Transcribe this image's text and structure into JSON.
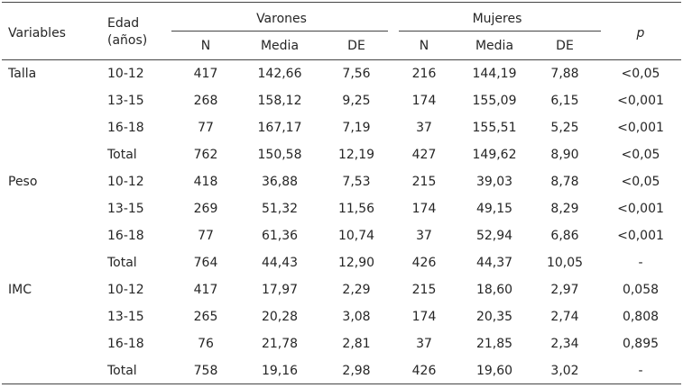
{
  "headers": {
    "variables": "Variables",
    "edad_line1": "Edad",
    "edad_line2": "(años)",
    "group_male": "Varones",
    "group_female": "Mujeres",
    "n": "N",
    "media": "Media",
    "de": "DE",
    "p": "p"
  },
  "rows": [
    {
      "variable": "Talla",
      "edad": "10-12",
      "vn": "417",
      "vm": "142,66",
      "vde": "7,56",
      "mn": "216",
      "mm": "144,19",
      "mde": "7,88",
      "p": "<0,05"
    },
    {
      "variable": "",
      "edad": "13-15",
      "vn": "268",
      "vm": "158,12",
      "vde": "9,25",
      "mn": "174",
      "mm": "155,09",
      "mde": "6,15",
      "p": "<0,001"
    },
    {
      "variable": "",
      "edad": "16-18",
      "vn": "77",
      "vm": "167,17",
      "vde": "7,19",
      "mn": "37",
      "mm": "155,51",
      "mde": "5,25",
      "p": "<0,001"
    },
    {
      "variable": "",
      "edad": "Total",
      "vn": "762",
      "vm": "150,58",
      "vde": "12,19",
      "mn": "427",
      "mm": "149,62",
      "mde": "8,90",
      "p": "<0,05"
    },
    {
      "variable": "Peso",
      "edad": "10-12",
      "vn": "418",
      "vm": "36,88",
      "vde": "7,53",
      "mn": "215",
      "mm": "39,03",
      "mde": "8,78",
      "p": "<0,05"
    },
    {
      "variable": "",
      "edad": "13-15",
      "vn": "269",
      "vm": "51,32",
      "vde": "11,56",
      "mn": "174",
      "mm": "49,15",
      "mde": "8,29",
      "p": "<0,001"
    },
    {
      "variable": "",
      "edad": "16-18",
      "vn": "77",
      "vm": "61,36",
      "vde": "10,74",
      "mn": "37",
      "mm": "52,94",
      "mde": "6,86",
      "p": "<0,001"
    },
    {
      "variable": "",
      "edad": "Total",
      "vn": "764",
      "vm": "44,43",
      "vde": "12,90",
      "mn": "426",
      "mm": "44,37",
      "mde": "10,05",
      "p": "-"
    },
    {
      "variable": "IMC",
      "edad": "10-12",
      "vn": "417",
      "vm": "17,97",
      "vde": "2,29",
      "mn": "215",
      "mm": "18,60",
      "mde": "2,97",
      "p": "0,058"
    },
    {
      "variable": "",
      "edad": "13-15",
      "vn": "265",
      "vm": "20,28",
      "vde": "3,08",
      "mn": "174",
      "mm": "20,35",
      "mde": "2,74",
      "p": "0,808"
    },
    {
      "variable": "",
      "edad": "16-18",
      "vn": "76",
      "vm": "21,78",
      "vde": "2,81",
      "mn": "37",
      "mm": "21,85",
      "mde": "2,34",
      "p": "0,895"
    },
    {
      "variable": "",
      "edad": "Total",
      "vn": "758",
      "vm": "19,16",
      "vde": "2,98",
      "mn": "426",
      "mm": "19,60",
      "mde": "3,02",
      "p": "-"
    }
  ]
}
